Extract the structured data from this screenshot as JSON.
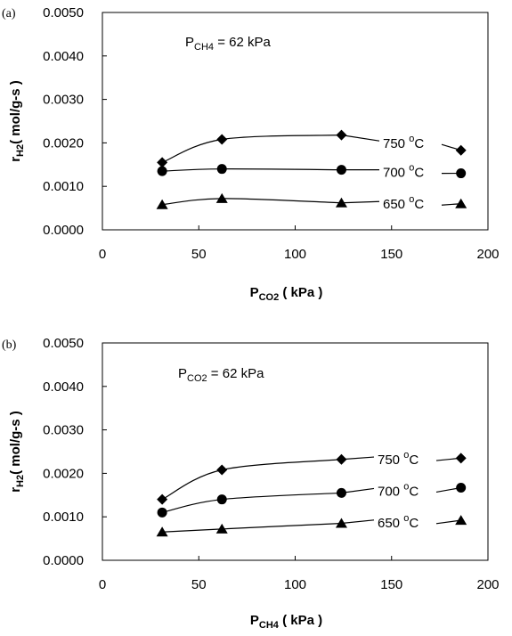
{
  "chart_data": [
    {
      "panel": "(a)",
      "type": "line",
      "annotation": {
        "main": "P",
        "sub": "CH4",
        "rest": " = 62 kPa"
      },
      "ylabel": {
        "main": "r",
        "sub": "H2",
        "rest": "( mol/g-s )"
      },
      "xlabel": {
        "main": "P",
        "sub": "CO2",
        "rest": " ( kPa )"
      },
      "xlim": [
        0,
        200
      ],
      "ylim": [
        0,
        0.005
      ],
      "xticks": [
        "0",
        "50",
        "100",
        "150",
        "200"
      ],
      "yticks": [
        "0.0000",
        "0.0010",
        "0.0020",
        "0.0030",
        "0.0040",
        "0.0050"
      ],
      "series": [
        {
          "name": "750 °C",
          "label_main": "750 ",
          "label_sup": "o",
          "label_rest": "C",
          "marker": "diamond",
          "x": [
            31,
            62,
            124,
            186
          ],
          "y": [
            0.00155,
            0.00208,
            0.00218,
            0.00183
          ]
        },
        {
          "name": "700 °C",
          "label_main": "700 ",
          "label_sup": "o",
          "label_rest": "C",
          "marker": "circle",
          "x": [
            31,
            62,
            124,
            186
          ],
          "y": [
            0.00135,
            0.0014,
            0.00138,
            0.0013
          ]
        },
        {
          "name": "650 °C",
          "label_main": "650 ",
          "label_sup": "o",
          "label_rest": "C",
          "marker": "triangle",
          "x": [
            31,
            62,
            124,
            186
          ],
          "y": [
            0.00058,
            0.00072,
            0.00062,
            0.0006
          ]
        }
      ]
    },
    {
      "panel": "(b)",
      "type": "line",
      "annotation": {
        "main": "P",
        "sub": "CO2",
        "rest": " = 62 kPa"
      },
      "ylabel": {
        "main": "r",
        "sub": "H2",
        "rest": "( mol/g-s )"
      },
      "xlabel": {
        "main": "P",
        "sub": "CH4",
        "rest": " ( kPa )"
      },
      "xlim": [
        0,
        200
      ],
      "ylim": [
        0,
        0.005
      ],
      "xticks": [
        "0",
        "50",
        "100",
        "150",
        "200"
      ],
      "yticks": [
        "0.0000",
        "0.0010",
        "0.0020",
        "0.0030",
        "0.0040",
        "0.0050"
      ],
      "series": [
        {
          "name": "750 °C",
          "label_main": "750 ",
          "label_sup": "o",
          "label_rest": "C",
          "marker": "diamond",
          "x": [
            31,
            62,
            124,
            186
          ],
          "y": [
            0.0014,
            0.00208,
            0.00232,
            0.00235
          ]
        },
        {
          "name": "700 °C",
          "label_main": "700 ",
          "label_sup": "o",
          "label_rest": "C",
          "marker": "circle",
          "x": [
            31,
            62,
            124,
            186
          ],
          "y": [
            0.0011,
            0.0014,
            0.00155,
            0.00167
          ]
        },
        {
          "name": "650 °C",
          "label_main": "650 ",
          "label_sup": "o",
          "label_rest": "C",
          "marker": "triangle",
          "x": [
            31,
            62,
            124,
            186
          ],
          "y": [
            0.00065,
            0.00072,
            0.00085,
            0.00092
          ]
        }
      ]
    }
  ]
}
